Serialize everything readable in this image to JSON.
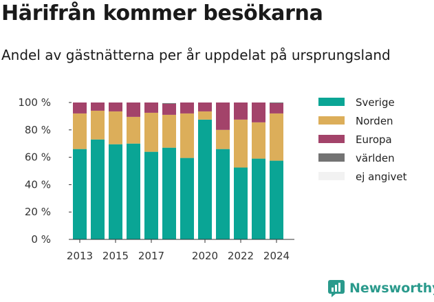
{
  "title": "Härifrån kommer besökarna",
  "subtitle": "Andel av gästnätterna per år uppdelat på ursprungsland",
  "brand": {
    "name": "Newsworthy",
    "logo_icon": "newsworthy-chart-icon"
  },
  "chart_data": {
    "type": "bar",
    "stacked": true,
    "title": "Härifrån kommer besökarna",
    "subtitle": "Andel av gästnätterna per år uppdelat på ursprungsland",
    "xlabel": "",
    "ylabel": "",
    "ylim": [
      0,
      100
    ],
    "categories": [
      2013,
      2014,
      2015,
      2016,
      2017,
      2018,
      2019,
      2020,
      2021,
      2022,
      2023,
      2024
    ],
    "x_tick_labels": [
      "2013",
      "2015",
      "2017",
      "2020",
      "2022",
      "2024"
    ],
    "y_ticks": [
      0,
      20,
      40,
      60,
      80,
      100
    ],
    "y_tick_labels": [
      "0 %",
      "20 %",
      "40 %",
      "60 %",
      "80 %",
      "100 %"
    ],
    "grid": false,
    "legend_position": "right",
    "series": [
      {
        "name": "Sverige",
        "color": "#0aa595",
        "values": [
          66,
          73,
          69.5,
          70,
          64,
          67,
          59.5,
          87.5,
          66,
          52.5,
          59,
          57.5
        ]
      },
      {
        "name": "Norden",
        "color": "#dcae5a",
        "values": [
          26,
          21,
          24,
          19.5,
          28.5,
          24,
          32.5,
          6,
          14,
          35,
          26.5,
          34.5
        ]
      },
      {
        "name": "Europa",
        "color": "#a3436a",
        "values": [
          8,
          6,
          6.5,
          10.5,
          7.5,
          8,
          8,
          6.5,
          20,
          12.5,
          14.5,
          7.5
        ]
      },
      {
        "name": "världen",
        "color": "#737373",
        "values": [
          0,
          0,
          0,
          0,
          0,
          0.5,
          0,
          0,
          0,
          0,
          0,
          0.5
        ]
      },
      {
        "name": "ej angivet",
        "color": "#f2f2f2",
        "values": [
          0,
          0,
          0,
          0,
          0,
          0.5,
          0,
          0,
          0,
          0,
          0,
          0
        ]
      }
    ]
  }
}
